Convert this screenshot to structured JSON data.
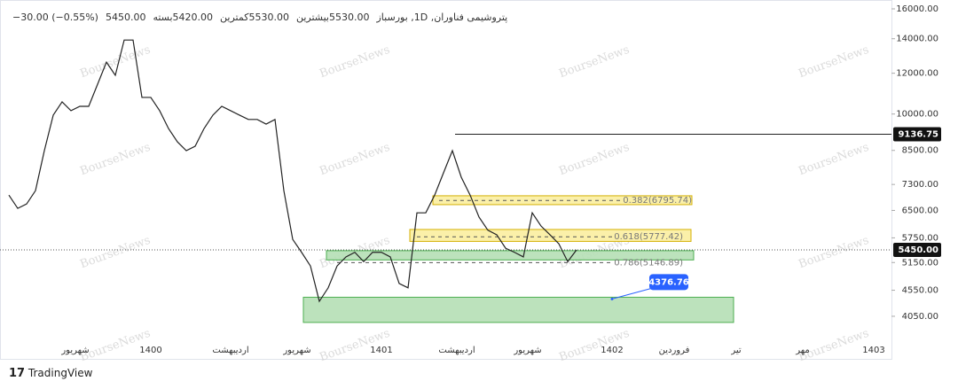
{
  "header": {
    "symbol": "پتروشیمی فناوران, 1D, بورس",
    "ohlc": [
      {
        "label": "باز",
        "value": "5530.00"
      },
      {
        "label": "بیشترین",
        "value": "5530.00"
      },
      {
        "label": "کمترین",
        "value": "5420.00"
      },
      {
        "label": "بسته",
        "value": "5450.00"
      }
    ],
    "change": "−30.00 (−0.55%)"
  },
  "watermark": "BourseNews",
  "footer": "TradingView",
  "chart_data": {
    "type": "line",
    "color": "#222222",
    "log_scale": true,
    "x": [
      0,
      2,
      4,
      6,
      8,
      10,
      12,
      14,
      16,
      18,
      20,
      22,
      24,
      26,
      28,
      30,
      32,
      34,
      36,
      38,
      40,
      42,
      44,
      46,
      48,
      50,
      52,
      54,
      56,
      58,
      60,
      62,
      64,
      66,
      68,
      70,
      72,
      74,
      76,
      78,
      80,
      82,
      84,
      86,
      88,
      90,
      92,
      94,
      96,
      98,
      100,
      102,
      104,
      106,
      108,
      110,
      112,
      114,
      116,
      118,
      120,
      122,
      124,
      126,
      128
    ],
    "values": [
      6960,
      6560,
      6690,
      7100,
      8490,
      9950,
      10560,
      10150,
      10350,
      10350,
      11420,
      12610,
      11890,
      13920,
      13920,
      10770,
      10770,
      10150,
      9370,
      8830,
      8490,
      8660,
      9370,
      9950,
      10350,
      10150,
      9950,
      9760,
      9760,
      9560,
      9760,
      7100,
      5710,
      5390,
      5070,
      4330,
      4600,
      5070,
      5280,
      5390,
      5170,
      5390,
      5390,
      5280,
      4690,
      4600,
      6430,
      6430,
      6960,
      7690,
      8490,
      7540,
      6960,
      6310,
      5950,
      5830,
      5490,
      5390,
      5280,
      6430,
      6060,
      5830,
      5600,
      5170,
      5450
    ],
    "xlim": [
      0,
      198
    ],
    "xticks": [
      {
        "value": 15,
        "label": "شهریور"
      },
      {
        "value": 32,
        "label": "1400"
      },
      {
        "value": 50,
        "label": "اردیبهشت"
      },
      {
        "value": 65,
        "label": "شهریور"
      },
      {
        "value": 84,
        "label": "1401"
      },
      {
        "value": 101,
        "label": "اردیبهشت"
      },
      {
        "value": 117,
        "label": "شهریور"
      },
      {
        "value": 136,
        "label": "1402"
      },
      {
        "value": 150,
        "label": "فروردین"
      },
      {
        "value": 164,
        "label": "تیر"
      },
      {
        "value": 179,
        "label": "مهر"
      },
      {
        "value": 195,
        "label": "1403"
      }
    ],
    "ylim": [
      3415,
      16646
    ],
    "yticks": [
      {
        "value": 16000,
        "label": "16000.00"
      },
      {
        "value": 14000,
        "label": "14000.00"
      },
      {
        "value": 12000,
        "label": "12000.00"
      },
      {
        "value": 10000,
        "label": "10000.00"
      },
      {
        "value": 8500,
        "label": "8500.00"
      },
      {
        "value": 7300,
        "label": "7300.00"
      },
      {
        "value": 6500,
        "label": "6500.00"
      },
      {
        "value": 5750,
        "label": "5750.00"
      },
      {
        "value": 5150,
        "label": "5150.00"
      },
      {
        "value": 4550,
        "label": "4550.00"
      },
      {
        "value": 4050,
        "label": "4050.00"
      }
    ],
    "zones": [
      {
        "x": [
          95.6,
          154
        ],
        "y": [
          6670,
          6940
        ],
        "color": "#fbeea0",
        "edge": "#d4b106"
      },
      {
        "x": [
          90.4,
          153.8
        ],
        "y": [
          5660,
          5970
        ],
        "color": "#fbeea0",
        "edge": "#d4b106"
      },
      {
        "x": [
          71.6,
          154.4
        ],
        "y": [
          5210,
          5430
        ],
        "color": "#b5dfb5",
        "edge": "#4caf50"
      },
      {
        "x": [
          66.4,
          163.4
        ],
        "y": [
          3940,
          4410
        ],
        "color": "#b5dfb5",
        "edge": "#4caf50"
      }
    ],
    "fib_levels": [
      {
        "value": 6795.74,
        "label": "0.382(6795.74)",
        "x": [
          97,
          154
        ]
      },
      {
        "value": 5777.42,
        "label": "0.618(5777.42)",
        "x": [
          92,
          152
        ]
      },
      {
        "value": 5146.89,
        "label": "0.786(5146.89)",
        "x": [
          74,
          152
        ]
      }
    ],
    "resistance": {
      "value": 9136.75,
      "x": 100.6
    },
    "last_price": {
      "value": 5450,
      "label": "5450.00"
    },
    "callout": {
      "x": 136,
      "value": 4376.76
    }
  }
}
